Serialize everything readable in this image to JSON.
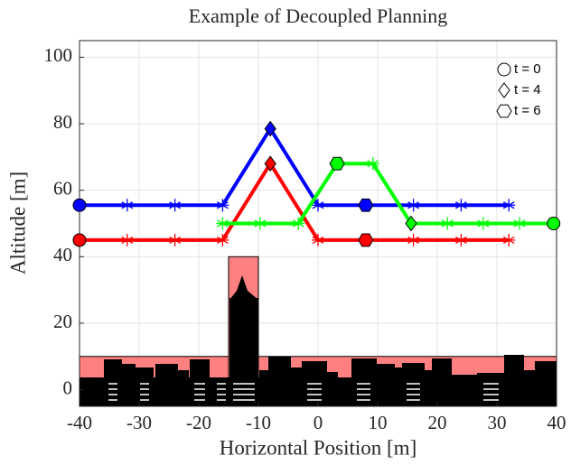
{
  "chart_data": {
    "type": "line",
    "title": "Example of Decoupled Planning",
    "xlabel": "Horizontal Position [m]",
    "ylabel": "Altitude [m]",
    "xlim": [
      -40,
      40
    ],
    "ylim": [
      -5,
      105
    ],
    "xticks": [
      -40,
      -30,
      -20,
      -10,
      0,
      10,
      20,
      30,
      40
    ],
    "yticks": [
      0,
      20,
      40,
      60,
      80,
      100
    ],
    "grid": true,
    "obstacles": {
      "color": "#ff8080",
      "items": [
        {
          "x": [
            -40,
            40
          ],
          "height": 10
        },
        {
          "x": [
            -15,
            -10
          ],
          "height": 40
        }
      ]
    },
    "legend": [
      {
        "label": "t = 0",
        "marker": "circle"
      },
      {
        "label": "t = 4",
        "marker": "diamond"
      },
      {
        "label": "t = 6",
        "marker": "hexagon"
      }
    ],
    "series": [
      {
        "color": "#0000ff",
        "x": [
          -40,
          -32,
          -24,
          -16,
          -8,
          0,
          8,
          16,
          24,
          32
        ],
        "values": [
          55.5,
          55.5,
          55.5,
          55.5,
          78.5,
          55.5,
          55.5,
          55.5,
          55.5,
          55.5
        ],
        "marker_indices": [
          0,
          4,
          6
        ]
      },
      {
        "color": "#ff0000",
        "x": [
          -40,
          -32,
          -24,
          -16,
          -8,
          0,
          8,
          16,
          24,
          32
        ],
        "values": [
          45,
          45,
          45,
          45,
          68,
          45,
          45,
          45,
          45,
          45
        ],
        "marker_indices": [
          0,
          4,
          6
        ]
      },
      {
        "color": "#00ff00",
        "x": [
          -16,
          -9.7,
          -3.3,
          3.2,
          9.2,
          15.6,
          21.7,
          27.7,
          33.8,
          39.5
        ],
        "values": [
          50,
          50,
          50,
          68,
          68,
          50,
          50,
          50,
          50,
          50
        ],
        "marker_indices": [
          9,
          5,
          3
        ]
      }
    ]
  }
}
